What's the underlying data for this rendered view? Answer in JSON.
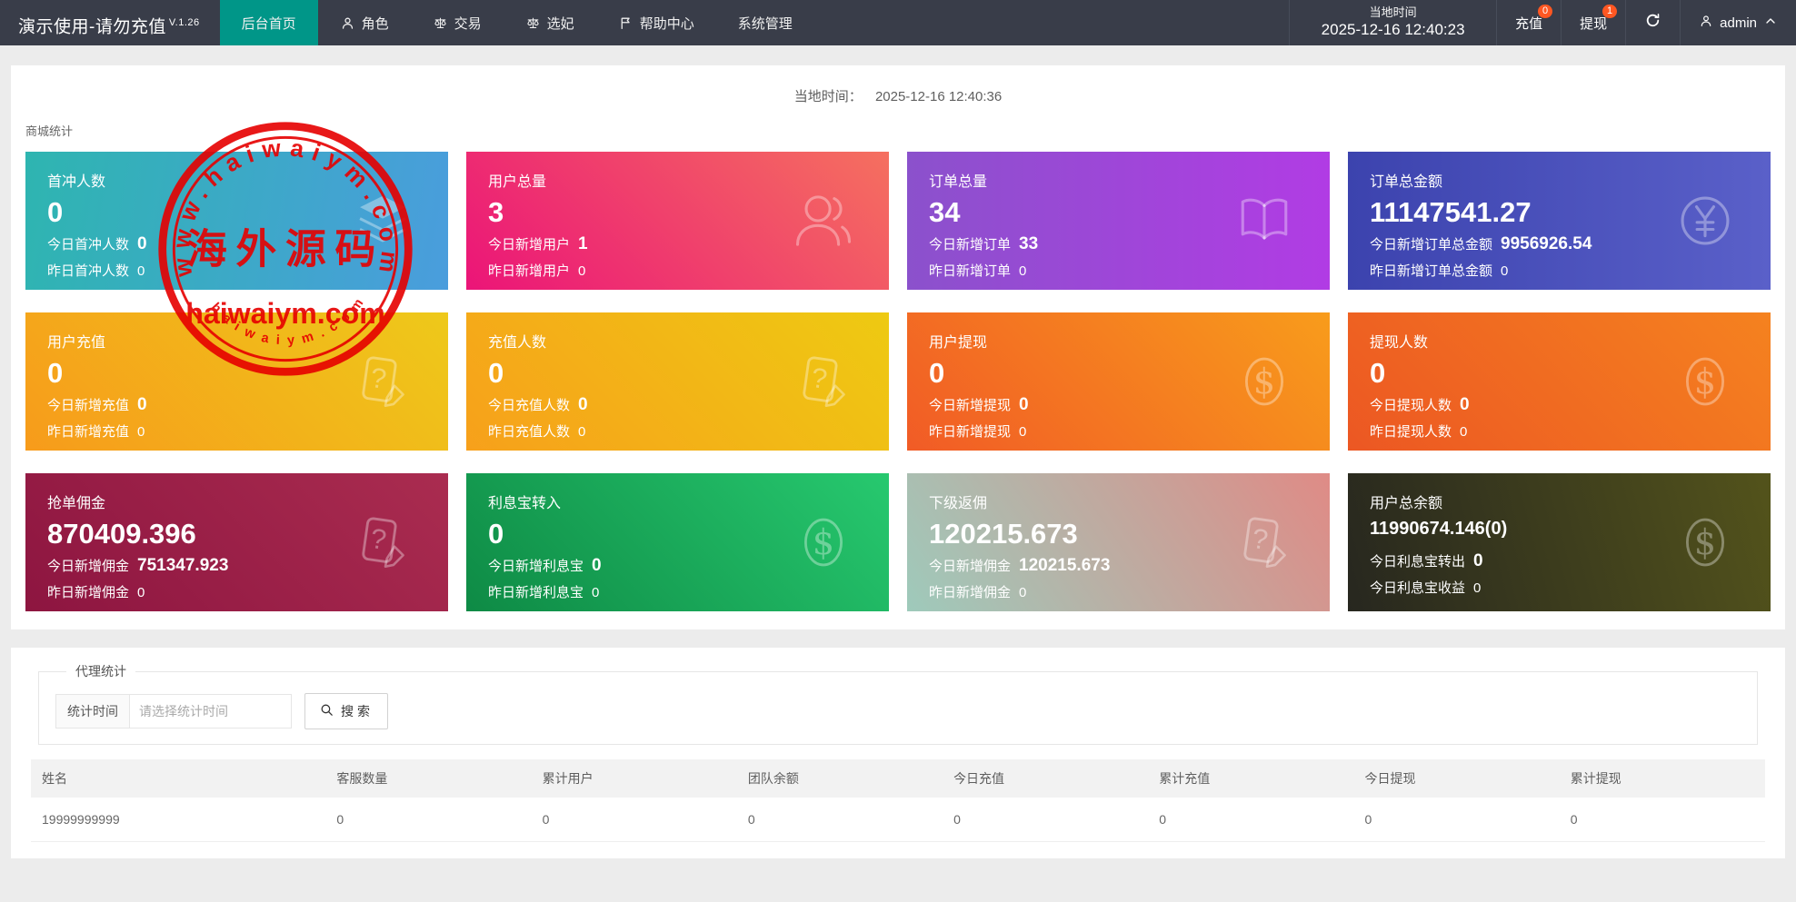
{
  "colors": {
    "navbar": "#393d49",
    "accent": "#009688",
    "badge": "#ff5722",
    "stamp": "#e60000"
  },
  "navbar": {
    "brand": "演示使用-请勿充值",
    "version": "V.1.26",
    "menu": [
      {
        "label": "后台首页",
        "icon": null,
        "active": true
      },
      {
        "label": "角色",
        "icon": "user-icon",
        "active": false
      },
      {
        "label": "交易",
        "icon": "scale-icon",
        "active": false
      },
      {
        "label": "选妃",
        "icon": "scale-icon",
        "active": false
      },
      {
        "label": "帮助中心",
        "icon": "flag-icon",
        "active": false
      },
      {
        "label": "系统管理",
        "icon": null,
        "active": false
      }
    ],
    "local_time_label": "当地时间",
    "local_time_value": "2025-12-16 12:40:23",
    "recharge": {
      "label": "充值",
      "badge": "0"
    },
    "withdraw": {
      "label": "提现",
      "badge": "1"
    },
    "username": "admin"
  },
  "main": {
    "local_time_label": "当地时间：",
    "local_time_value": "2025-12-16 12:40:36",
    "section_title": "商城统计",
    "cards": [
      {
        "title": "首冲人数",
        "value": "0",
        "today_label": "今日首冲人数",
        "today_value": "0",
        "yesterday_label": "昨日首冲人数",
        "yesterday_value": "0",
        "icon": "layers-icon",
        "angle": "100deg",
        "from": "#2eb5b0",
        "to": "#4a9ddd",
        "small": false
      },
      {
        "title": "用户总量",
        "value": "3",
        "today_label": "今日新增用户",
        "today_value": "1",
        "yesterday_label": "昨日新增用户",
        "yesterday_value": "0",
        "icon": "users-icon",
        "angle": "45deg",
        "from": "#eb1478",
        "to": "#f5705f",
        "small": false
      },
      {
        "title": "订单总量",
        "value": "34",
        "today_label": "今日新增订单",
        "today_value": "33",
        "yesterday_label": "昨日新增订单",
        "yesterday_value": "0",
        "icon": "book-icon",
        "angle": "90deg",
        "from": "#8b51cc",
        "to": "#b13ce4",
        "small": false
      },
      {
        "title": "订单总金额",
        "value": "11147541.27",
        "today_label": "今日新增订单总金额",
        "today_value": "9956926.54",
        "yesterday_label": "昨日新增订单总金额",
        "yesterday_value": "0",
        "icon": "yen-icon",
        "angle": "90deg",
        "from": "#3c43ae",
        "to": "#5a60c9",
        "small": false
      },
      {
        "title": "用户充值",
        "value": "0",
        "today_label": "今日新增充值",
        "today_value": "0",
        "yesterday_label": "昨日新增充值",
        "yesterday_value": "0",
        "icon": "doc-edit-icon",
        "angle": "45deg",
        "from": "#f79b1b",
        "to": "#eec91a",
        "small": false
      },
      {
        "title": "充值人数",
        "value": "0",
        "today_label": "今日充值人数",
        "today_value": "0",
        "yesterday_label": "昨日充值人数",
        "yesterday_value": "0",
        "icon": "doc-edit-icon",
        "angle": "45deg",
        "from": "#f7a01b",
        "to": "#eeca12",
        "small": false
      },
      {
        "title": "用户提现",
        "value": "0",
        "today_label": "今日新增提现",
        "today_value": "0",
        "yesterday_label": "昨日新增提现",
        "yesterday_value": "0",
        "icon": "dollar-icon",
        "angle": "45deg",
        "from": "#f15b26",
        "to": "#f89c1b",
        "small": false
      },
      {
        "title": "提现人数",
        "value": "0",
        "today_label": "今日提现人数",
        "today_value": "0",
        "yesterday_label": "昨日提现人数",
        "yesterday_value": "0",
        "icon": "dollar-icon",
        "angle": "45deg",
        "from": "#ec5723",
        "to": "#f5821f",
        "small": false
      },
      {
        "title": "抢单佣金",
        "value": "870409.396",
        "today_label": "今日新增佣金",
        "today_value": "751347.923",
        "yesterday_label": "昨日新增佣金",
        "yesterday_value": "0",
        "icon": "doc-edit-icon",
        "angle": "45deg",
        "from": "#8d1540",
        "to": "#aa2c50",
        "small": false
      },
      {
        "title": "利息宝转入",
        "value": "0",
        "today_label": "今日新增利息宝",
        "today_value": "0",
        "yesterday_label": "昨日新增利息宝",
        "yesterday_value": "0",
        "icon": "dollar-icon",
        "angle": "45deg",
        "from": "#0e8a45",
        "to": "#27c96f",
        "small": false
      },
      {
        "title": "下级返佣",
        "value": "120215.673",
        "today_label": "今日新增佣金",
        "today_value": "120215.673",
        "yesterday_label": "昨日新增佣金",
        "yesterday_value": "0",
        "icon": "doc-edit-icon",
        "angle": "55deg",
        "from": "#9ecabb",
        "to": "#df8b86",
        "small": false
      },
      {
        "title": "用户总余额",
        "value": "11990674.146(0)",
        "today_label": "今日利息宝转出",
        "today_value": "0",
        "yesterday_label": "今日利息宝收益",
        "yesterday_value": "0",
        "icon": "dollar-icon",
        "angle": "75deg",
        "from": "#27271f",
        "to": "#53531b",
        "small": true
      }
    ]
  },
  "agent": {
    "legend": "代理统计",
    "filter_label": "统计时间",
    "filter_placeholder": "请选择统计时间",
    "search_label": "搜索",
    "table": {
      "headers": [
        "姓名",
        "客服数量",
        "累计用户",
        "团队余额",
        "今日充值",
        "累计充值",
        "今日提现",
        "累计提现"
      ],
      "rows": [
        [
          "19999999999",
          "0",
          "0",
          "0",
          "0",
          "0",
          "0",
          "0"
        ]
      ]
    }
  },
  "watermark": {
    "arc_top": "www.haiwaiym.com",
    "center_cn": "海外源码",
    "center_en": "haiwaiym.com",
    "arc_bottom": "haiwaiym.com",
    "color": "#e60000"
  }
}
